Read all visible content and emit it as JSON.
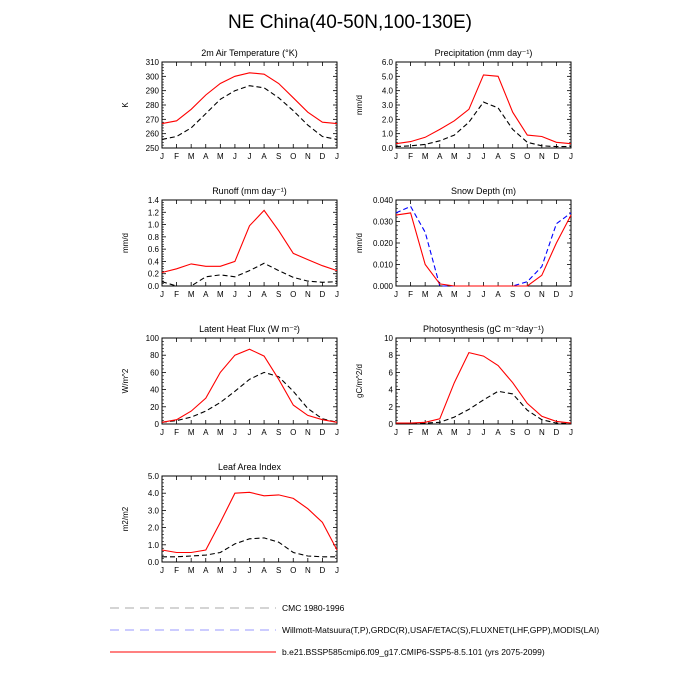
{
  "page_title": "NE China(40-50N,100-130E)",
  "months": [
    "J",
    "F",
    "M",
    "A",
    "M",
    "J",
    "J",
    "A",
    "S",
    "O",
    "N",
    "D",
    "J"
  ],
  "colors": {
    "red": "#ff0000",
    "black": "#000000",
    "blue": "#0000ff",
    "grey": "#aaaaaa",
    "lightblue": "#9a9aff"
  },
  "chart_data": [
    {
      "id": "temp",
      "type": "line",
      "title": "2m Air Temperature (°K)",
      "ylabel": "K",
      "ylim": [
        250,
        310
      ],
      "yticks": [
        "250",
        "260",
        "270",
        "280",
        "290",
        "300",
        "310"
      ],
      "series": [
        {
          "role": "cmc",
          "values": [
            256,
            258,
            264,
            274,
            284,
            290,
            293.5,
            292,
            285,
            276,
            266,
            258,
            256
          ]
        },
        {
          "role": "model",
          "values": [
            267,
            269,
            277,
            287,
            295,
            300,
            302.5,
            301.5,
            295,
            285,
            275,
            268,
            267
          ]
        }
      ]
    },
    {
      "id": "precip",
      "type": "line",
      "title": "Precipitation (mm day⁻¹)",
      "ylabel": "mm/d",
      "ylim": [
        0,
        6
      ],
      "yticks": [
        "0.0",
        "1.0",
        "2.0",
        "3.0",
        "4.0",
        "5.0",
        "6.0"
      ],
      "series": [
        {
          "role": "cmc",
          "values": [
            0.1,
            0.15,
            0.25,
            0.5,
            0.9,
            1.8,
            3.2,
            2.8,
            1.3,
            0.4,
            0.15,
            0.1,
            0.1
          ]
        },
        {
          "role": "model",
          "values": [
            0.3,
            0.45,
            0.75,
            1.3,
            1.9,
            2.7,
            5.1,
            5.0,
            2.5,
            0.9,
            0.8,
            0.4,
            0.3
          ]
        }
      ]
    },
    {
      "id": "runoff",
      "type": "line",
      "title": "Runoff (mm day⁻¹)",
      "ylabel": "mm/d",
      "ylim": [
        0,
        1.4
      ],
      "yticks": [
        "0.0",
        "0.2",
        "0.4",
        "0.6",
        "0.8",
        "1.0",
        "1.2",
        "1.4"
      ],
      "series": [
        {
          "role": "cmc",
          "values": [
            0.07,
            0.0,
            0.0,
            0.15,
            0.18,
            0.15,
            0.25,
            0.37,
            0.25,
            0.14,
            0.08,
            0.06,
            0.07
          ]
        },
        {
          "role": "model",
          "values": [
            0.22,
            0.28,
            0.36,
            0.32,
            0.32,
            0.4,
            0.98,
            1.23,
            0.9,
            0.53,
            0.43,
            0.33,
            0.25
          ]
        }
      ]
    },
    {
      "id": "snow",
      "type": "line",
      "title": "Snow Depth (m)",
      "ylabel": "mm/d",
      "ylim": [
        0,
        0.04
      ],
      "yticks": [
        "0.000",
        "0.010",
        "0.020",
        "0.030",
        "0.040"
      ],
      "series": [
        {
          "role": "obs",
          "values": [
            0.034,
            0.037,
            0.025,
            0.0,
            0.0,
            0.0,
            0.0,
            0.0,
            0.0,
            0.002,
            0.009,
            0.029,
            0.034
          ]
        },
        {
          "role": "model",
          "values": [
            0.033,
            0.034,
            0.01,
            0.001,
            0.0,
            0.0,
            0.0,
            0.0,
            0.0,
            0.0,
            0.005,
            0.02,
            0.033
          ]
        }
      ]
    },
    {
      "id": "lhf",
      "type": "line",
      "title": "Latent Heat Flux (W m⁻²)",
      "ylabel": "W/m^2",
      "ylim": [
        0,
        100
      ],
      "yticks": [
        "0",
        "20",
        "40",
        "60",
        "80",
        "100"
      ],
      "series": [
        {
          "role": "cmc",
          "values": [
            2,
            4,
            8,
            15,
            25,
            38,
            52,
            60,
            55,
            38,
            18,
            6,
            2
          ]
        },
        {
          "role": "model",
          "values": [
            2,
            5,
            15,
            30,
            60,
            80,
            87,
            79,
            52,
            22,
            10,
            5,
            2
          ]
        }
      ]
    },
    {
      "id": "gpp",
      "type": "line",
      "title": "Photosynthesis (gC m⁻²day⁻¹)",
      "ylabel": "gC/m^2/d",
      "ylim": [
        0,
        10
      ],
      "yticks": [
        "0",
        "2",
        "4",
        "6",
        "8",
        "10"
      ],
      "series": [
        {
          "role": "cmc",
          "values": [
            0.0,
            0.05,
            0.1,
            0.2,
            0.8,
            1.7,
            2.8,
            3.8,
            3.5,
            1.6,
            0.5,
            0.1,
            0.05
          ]
        },
        {
          "role": "model",
          "values": [
            0.1,
            0.1,
            0.2,
            0.6,
            4.8,
            8.3,
            7.9,
            6.8,
            4.8,
            2.4,
            0.9,
            0.3,
            0.1
          ]
        }
      ]
    },
    {
      "id": "lai",
      "type": "line",
      "title": "Leaf Area Index",
      "ylabel": "m2/m2",
      "ylim": [
        0,
        5
      ],
      "yticks": [
        "0.0",
        "1.0",
        "2.0",
        "3.0",
        "4.0",
        "5.0"
      ],
      "series": [
        {
          "role": "cmc",
          "values": [
            0.3,
            0.3,
            0.35,
            0.4,
            0.55,
            1.05,
            1.35,
            1.4,
            1.15,
            0.55,
            0.35,
            0.3,
            0.3
          ]
        },
        {
          "role": "model",
          "values": [
            0.7,
            0.55,
            0.55,
            0.7,
            2.3,
            4.0,
            4.05,
            3.85,
            3.9,
            3.7,
            3.1,
            2.3,
            0.7
          ]
        }
      ]
    }
  ],
  "legend": [
    {
      "text": "CMC 1980-1996",
      "style": "grey-dash"
    },
    {
      "text": "Willmott-Matsuura(T,P),GRDC(R),USAF/ETAC(S),FLUXNET(LHF,GPP),MODIS(LAI)",
      "style": "blue-dash"
    },
    {
      "text": "b.e21.BSSP585cmip6.f09_g17.CMIP6-SSP5-8.5.101 (yrs 2075-2099)",
      "style": "red-solid"
    }
  ]
}
